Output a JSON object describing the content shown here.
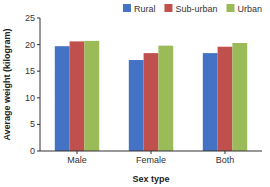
{
  "chart_data": {
    "type": "bar",
    "categories": [
      "Male",
      "Female",
      "Both"
    ],
    "series": [
      {
        "name": "Rural",
        "color": "#4472C4",
        "values": [
          19.7,
          17.1,
          18.4
        ]
      },
      {
        "name": "Sub-urban",
        "color": "#C0504D",
        "values": [
          20.6,
          18.4,
          19.6
        ]
      },
      {
        "name": "Urban",
        "color": "#9BBB59",
        "values": [
          20.7,
          19.8,
          20.3
        ]
      }
    ],
    "xlabel": "Sex type",
    "ylabel": "Average weight (kilogram)",
    "ylim": [
      0,
      25
    ],
    "yticks": [
      0,
      5,
      10,
      15,
      20,
      25
    ],
    "legend": "upper right",
    "grid": false
  }
}
